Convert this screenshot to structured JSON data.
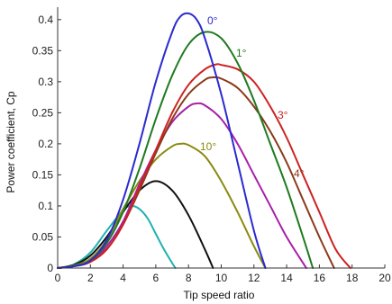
{
  "chart_data": {
    "type": "line",
    "xlabel": "Tip speed ratio",
    "ylabel": "Power coefficient, Cp",
    "xlim": [
      0,
      20
    ],
    "ylim": [
      0,
      0.42
    ],
    "xticks": [
      0,
      2,
      4,
      6,
      8,
      10,
      12,
      14,
      16,
      18,
      20
    ],
    "yticks": [
      0,
      0.05,
      0.1,
      0.15,
      0.2,
      0.25,
      0.3,
      0.35,
      0.4
    ],
    "xtick_labels": [
      "0",
      "2",
      "4",
      "6",
      "8",
      "10",
      "12",
      "14",
      "16",
      "18",
      "20"
    ],
    "ytick_labels": [
      "0",
      "0.05",
      "0.1",
      "0.15",
      "0.2",
      "0.25",
      "0.3",
      "0.35",
      "0.4"
    ],
    "grid": false,
    "series": [
      {
        "label": "0°",
        "color": "#2a2ad0",
        "x": [
          0,
          1,
          2,
          3,
          4,
          5,
          6,
          7,
          7.5,
          8,
          8.5,
          9,
          10,
          11,
          12,
          12.7
        ],
        "y": [
          0,
          0.003,
          0.012,
          0.045,
          0.11,
          0.2,
          0.3,
          0.38,
          0.405,
          0.41,
          0.4,
          0.37,
          0.28,
          0.17,
          0.06,
          0
        ]
      },
      {
        "label": "1°",
        "color": "#1f7a1f",
        "x": [
          0,
          1,
          2,
          3,
          4,
          5,
          6,
          7,
          8,
          9,
          10,
          11,
          12,
          13,
          14,
          15,
          15.6
        ],
        "y": [
          0,
          0.003,
          0.012,
          0.04,
          0.09,
          0.16,
          0.24,
          0.31,
          0.36,
          0.38,
          0.37,
          0.33,
          0.27,
          0.2,
          0.13,
          0.05,
          0
        ]
      },
      {
        "label": "3°",
        "color": "#cc2222",
        "x": [
          0,
          1,
          2,
          3,
          4,
          5,
          6,
          7,
          8,
          9,
          9.7,
          10,
          11,
          12,
          13,
          14,
          15,
          16,
          17,
          17.9
        ],
        "y": [
          0,
          0.003,
          0.01,
          0.03,
          0.07,
          0.13,
          0.19,
          0.25,
          0.295,
          0.32,
          0.328,
          0.327,
          0.32,
          0.3,
          0.26,
          0.21,
          0.15,
          0.09,
          0.03,
          0
        ]
      },
      {
        "label": "4°",
        "color": "#8a3a1a",
        "x": [
          0,
          1,
          2,
          3,
          4,
          5,
          6,
          7,
          8,
          9,
          9.5,
          10,
          11,
          12,
          13,
          14,
          15,
          16,
          16.9
        ],
        "y": [
          0,
          0.003,
          0.01,
          0.03,
          0.07,
          0.125,
          0.185,
          0.24,
          0.28,
          0.303,
          0.307,
          0.305,
          0.29,
          0.26,
          0.22,
          0.17,
          0.11,
          0.05,
          0
        ]
      },
      {
        "label": "",
        "color": "#a81fa8",
        "x": [
          0,
          1,
          2,
          3,
          4,
          5,
          6,
          7,
          8,
          8.5,
          9,
          10,
          11,
          12,
          13,
          14,
          15.2
        ],
        "y": [
          0,
          0.003,
          0.01,
          0.035,
          0.075,
          0.135,
          0.19,
          0.235,
          0.26,
          0.265,
          0.262,
          0.24,
          0.2,
          0.15,
          0.1,
          0.05,
          0
        ]
      },
      {
        "label": "10°",
        "color": "#8a8a10",
        "x": [
          0,
          1,
          2,
          3,
          4,
          5,
          6,
          7,
          7.5,
          8,
          9,
          10,
          11,
          12,
          12.7
        ],
        "y": [
          0,
          0.004,
          0.015,
          0.045,
          0.095,
          0.14,
          0.175,
          0.196,
          0.2,
          0.198,
          0.18,
          0.14,
          0.09,
          0.035,
          0
        ]
      },
      {
        "label": "",
        "color": "#111111",
        "x": [
          0,
          1,
          2,
          3,
          4,
          5,
          6,
          7,
          8,
          9,
          9.5
        ],
        "y": [
          0,
          0.005,
          0.02,
          0.05,
          0.09,
          0.125,
          0.14,
          0.125,
          0.085,
          0.03,
          0
        ]
      },
      {
        "label": "",
        "color": "#1fb0b0",
        "x": [
          0,
          1,
          2,
          3,
          4,
          4.5,
          5,
          5.5,
          6,
          6.5,
          7,
          7.2
        ],
        "y": [
          0,
          0.006,
          0.025,
          0.06,
          0.093,
          0.1,
          0.095,
          0.08,
          0.055,
          0.03,
          0.008,
          0
        ]
      }
    ]
  },
  "label_positions_note": ""
}
